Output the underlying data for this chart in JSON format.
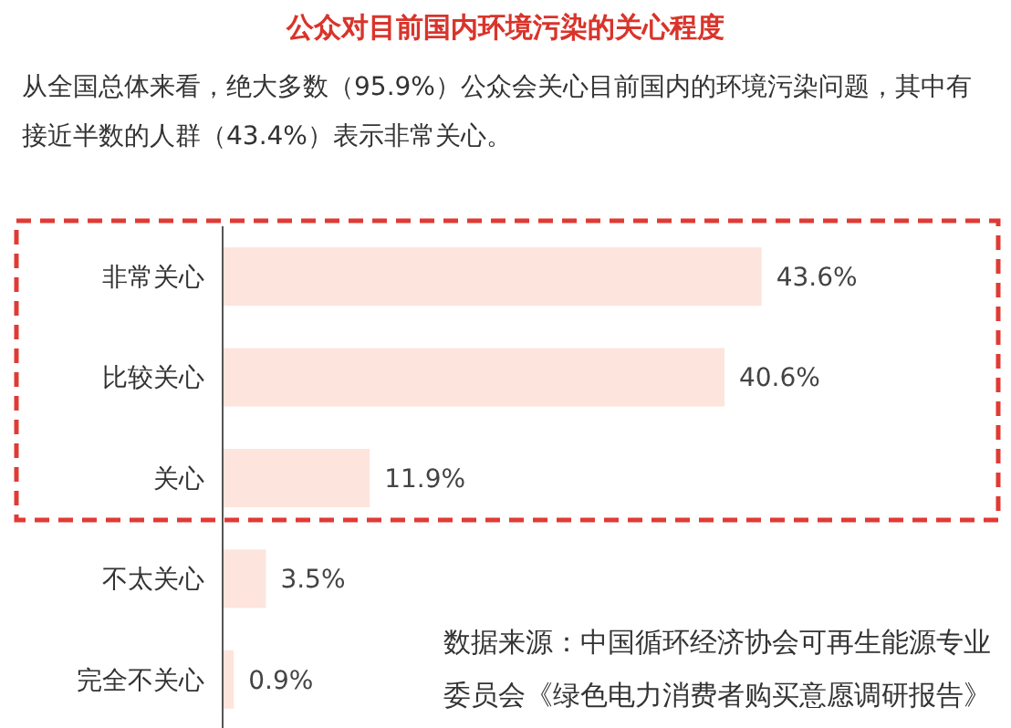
{
  "chart_data": {
    "type": "bar",
    "orientation": "horizontal",
    "title": "公众对目前国内环境污染的关心程度",
    "subtitle": "从全国总体来看，绝大多数（95.9%）公众会关心目前国内的环境污染问题，其中有接近半数的人群（43.4%）表示非常关心。",
    "categories": [
      "非常关心",
      "比较关心",
      "关心",
      "不太关心",
      "完全不关心"
    ],
    "values": [
      43.6,
      40.6,
      11.9,
      3.5,
      0.9
    ],
    "value_labels": [
      "43.6%",
      "40.6%",
      "11.9%",
      "3.5%",
      "0.9%"
    ],
    "color": "#fde4dc",
    "annotations": [
      "数据来源：中国循环经济协会可再生能源专业委员会《绿色电力消费者购买意愿调研报告》"
    ]
  }
}
